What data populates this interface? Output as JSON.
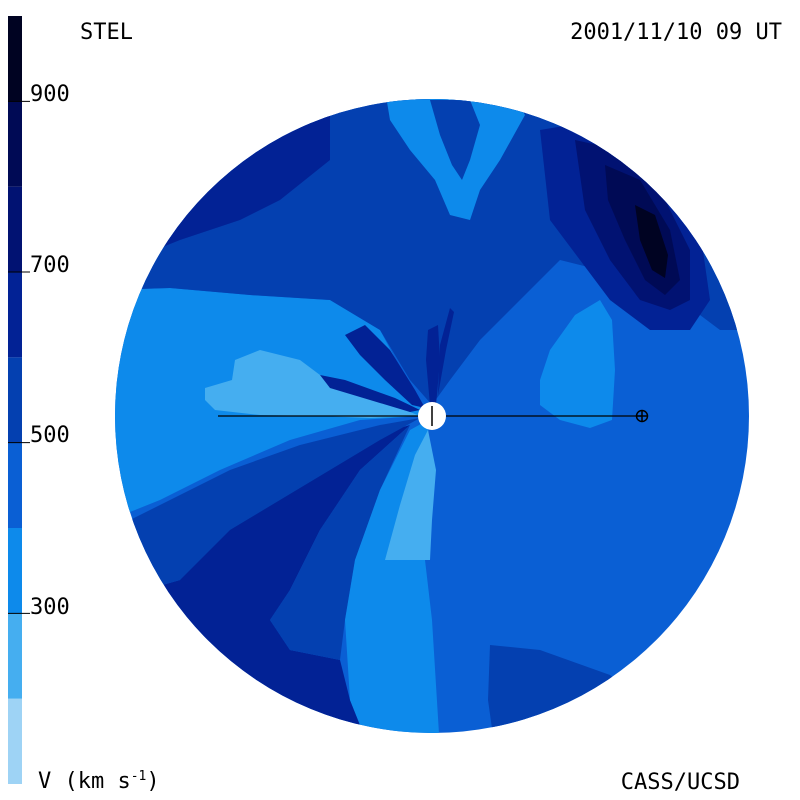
{
  "header": {
    "observatory": "STEL",
    "timestamp": "2001/11/10 09 UT"
  },
  "footer": {
    "credit": "CASS/UCSD",
    "units_prefix": "V (km s",
    "units_exp": "-1",
    "units_suffix": ")"
  },
  "color_scale": {
    "ticks": [
      "900",
      "700",
      "500",
      "300"
    ],
    "levels": [
      {
        "from": 100,
        "to": 200,
        "color": "#9ed3f5"
      },
      {
        "from": 200,
        "to": 300,
        "color": "#45aef0"
      },
      {
        "from": 300,
        "to": 400,
        "color": "#0d8aeb"
      },
      {
        "from": 400,
        "to": 500,
        "color": "#0a5fd4"
      },
      {
        "from": 500,
        "to": 600,
        "color": "#0440b0"
      },
      {
        "from": 600,
        "to": 700,
        "color": "#022295"
      },
      {
        "from": 700,
        "to": 800,
        "color": "#011272"
      },
      {
        "from": 800,
        "to": 900,
        "color": "#000a55"
      },
      {
        "from": 900,
        "to": 1000,
        "color": "#000322"
      }
    ]
  },
  "map": {
    "sun_symbol": "sun-icon",
    "earth_symbol": "earth-icon"
  }
}
